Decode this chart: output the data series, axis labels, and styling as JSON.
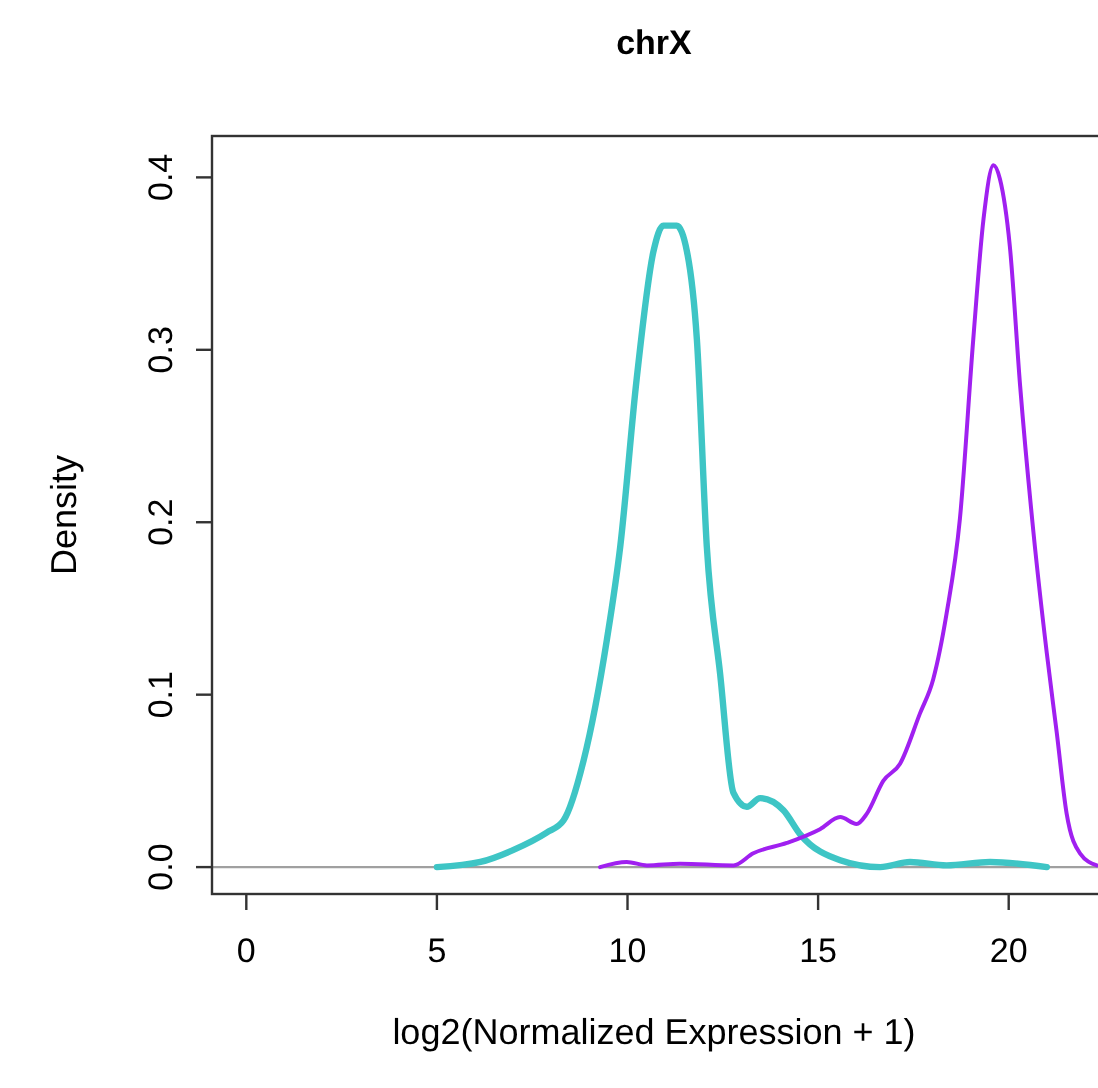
{
  "chart_data": {
    "type": "line",
    "title": "chrX",
    "xlabel": "log2(Normalized Expression + 1)",
    "ylabel": "Density",
    "xlim": [
      -0.9,
      22.5
    ],
    "ylim": [
      -0.0156,
      0.424
    ],
    "xticks": [
      0,
      5,
      10,
      15,
      20
    ],
    "yticks": [
      {
        "value": 0,
        "label": "0.0"
      },
      0.1,
      0.2,
      0.3,
      0.4
    ],
    "grid": false,
    "line_style": "solid",
    "ref_lines": [
      {
        "axis": "y",
        "value": 0,
        "color": "#a0a0a0"
      }
    ],
    "series": [
      {
        "color": "#3ec5c5",
        "x": [
          5.0,
          6.14,
          7.01,
          7.88,
          8.32,
          8.85,
          9.46,
          9.81,
          10.24,
          10.68,
          10.94,
          11.29,
          11.56,
          11.82,
          12.08,
          12.43,
          12.78,
          13.13,
          13.48,
          14.09,
          14.53,
          15.58,
          16.63,
          17.41,
          18.37,
          19.51,
          21.0
        ],
        "values": [
          0,
          0.003,
          0.01,
          0.02,
          0.027,
          0.062,
          0.132,
          0.186,
          0.283,
          0.357,
          0.372,
          0.372,
          0.357,
          0.306,
          0.186,
          0.112,
          0.043,
          0.035,
          0.04,
          0.033,
          0.019,
          0.004,
          0,
          0.003,
          0.001,
          0.003,
          0
        ]
      },
      {
        "color": "#a020f0",
        "x": [
          9.28,
          9.98,
          10.51,
          11.38,
          12.78,
          13.3,
          14.18,
          15.05,
          15.58,
          16.01,
          16.28,
          16.71,
          17.15,
          17.67,
          18.02,
          18.37,
          18.72,
          19.07,
          19.34,
          19.6,
          19.77,
          20.03,
          20.3,
          20.65,
          21.0,
          21.26,
          21.52,
          21.87,
          22.31
        ],
        "values": [
          0,
          0.003,
          0.001,
          0.002,
          0.001,
          0.008,
          0.014,
          0.022,
          0.029,
          0.025,
          0.031,
          0.05,
          0.06,
          0.089,
          0.109,
          0.147,
          0.202,
          0.306,
          0.376,
          0.407,
          0.399,
          0.36,
          0.279,
          0.194,
          0.124,
          0.078,
          0.031,
          0.008,
          0.001
        ]
      }
    ]
  }
}
